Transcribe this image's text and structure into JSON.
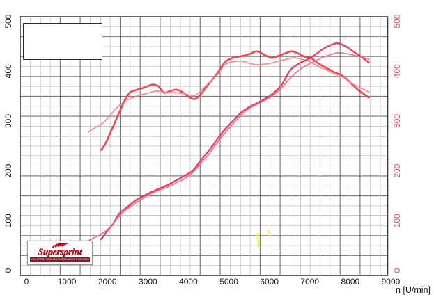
{
  "logo": {
    "brand": "Supersprint",
    "tagline": "HIGH PERFORMANCE EXHAUST SYSTEMS"
  },
  "axes": {
    "x_label": "n [U/min]",
    "x_ticks": [
      "0",
      "1000",
      "2000",
      "3000",
      "4000",
      "5000",
      "6000",
      "7000",
      "8000",
      "9000"
    ],
    "y_left_ticks": [
      "0",
      "100",
      "200",
      "300",
      "400",
      "500"
    ],
    "y_right_ticks": [
      "0",
      "100",
      "200",
      "300",
      "400",
      "500"
    ],
    "left_color": "#1c1c1c",
    "right_color": "#e4505e",
    "x_label_color": "#1c1c1c"
  },
  "grid_colors": {
    "minor": "#bcbcbc",
    "major": "#757575",
    "border": "#3a3a3a"
  },
  "chart_data": {
    "type": "line",
    "title": "",
    "xlabel": "n [U/min]",
    "ylabel": "",
    "xlim": [
      0,
      9000
    ],
    "ylim": [
      0,
      500
    ],
    "grid": "on",
    "legend": "none",
    "series": [
      {
        "name": "torque-curve-thick-red",
        "color": "#ee4150",
        "width": 2.7,
        "points": [
          [
            1850,
            242
          ],
          [
            1950,
            255
          ],
          [
            2050,
            272
          ],
          [
            2200,
            300
          ],
          [
            2350,
            328
          ],
          [
            2450,
            345
          ],
          [
            2550,
            357
          ],
          [
            2700,
            362
          ],
          [
            2900,
            367
          ],
          [
            3100,
            373
          ],
          [
            3250,
            370
          ],
          [
            3400,
            357
          ],
          [
            3550,
            360
          ],
          [
            3700,
            363
          ],
          [
            3850,
            358
          ],
          [
            4000,
            349
          ],
          [
            4150,
            344
          ],
          [
            4300,
            353
          ],
          [
            4450,
            369
          ],
          [
            4600,
            384
          ],
          [
            4750,
            400
          ],
          [
            4900,
            418
          ],
          [
            5100,
            427
          ],
          [
            5300,
            430
          ],
          [
            5500,
            434
          ],
          [
            5690,
            440
          ],
          [
            5850,
            434
          ],
          [
            6040,
            427
          ],
          [
            6200,
            430
          ],
          [
            6400,
            436
          ],
          [
            6550,
            440
          ],
          [
            6700,
            436
          ],
          [
            6900,
            428
          ],
          [
            7040,
            426
          ],
          [
            7200,
            416
          ],
          [
            7400,
            407
          ],
          [
            7600,
            398
          ],
          [
            7800,
            391
          ],
          [
            8000,
            377
          ],
          [
            8200,
            362
          ],
          [
            8460,
            347
          ]
        ]
      },
      {
        "name": "torque-curve-thin-salmon",
        "color": "#f4858b",
        "width": 1.7,
        "points": [
          [
            1530,
            278
          ],
          [
            1700,
            287
          ],
          [
            1850,
            293
          ],
          [
            2000,
            305
          ],
          [
            2150,
            319
          ],
          [
            2300,
            332
          ],
          [
            2450,
            341
          ],
          [
            2600,
            346
          ],
          [
            2800,
            352
          ],
          [
            3000,
            356
          ],
          [
            3200,
            360
          ],
          [
            3400,
            358
          ],
          [
            3600,
            357
          ],
          [
            3800,
            356
          ],
          [
            4000,
            353
          ],
          [
            4150,
            351
          ],
          [
            4300,
            360
          ],
          [
            4450,
            372
          ],
          [
            4600,
            384
          ],
          [
            4750,
            396
          ],
          [
            4900,
            413
          ],
          [
            5100,
            419
          ],
          [
            5340,
            420
          ],
          [
            5500,
            416
          ],
          [
            5690,
            413
          ],
          [
            5850,
            414
          ],
          [
            6040,
            416
          ],
          [
            6200,
            420
          ],
          [
            6430,
            424
          ],
          [
            6600,
            427
          ],
          [
            6800,
            424
          ],
          [
            7000,
            419
          ],
          [
            7200,
            410
          ],
          [
            7400,
            403
          ],
          [
            7600,
            395
          ],
          [
            7800,
            389
          ],
          [
            8000,
            377
          ],
          [
            8200,
            369
          ],
          [
            8460,
            358
          ]
        ]
      },
      {
        "name": "power-curve-thick-crimson",
        "color": "#e73a5e",
        "width": 2.5,
        "points": [
          [
            1850,
            63
          ],
          [
            2000,
            80
          ],
          [
            2150,
            95
          ],
          [
            2300,
            115
          ],
          [
            2500,
            128
          ],
          [
            2700,
            141
          ],
          [
            2900,
            150
          ],
          [
            3100,
            158
          ],
          [
            3300,
            165
          ],
          [
            3500,
            172
          ],
          [
            3700,
            181
          ],
          [
            3900,
            190
          ],
          [
            4100,
            200
          ],
          [
            4300,
            220
          ],
          [
            4500,
            240
          ],
          [
            4700,
            262
          ],
          [
            4900,
            283
          ],
          [
            5100,
            300
          ],
          [
            5300,
            317
          ],
          [
            5500,
            328
          ],
          [
            5700,
            336
          ],
          [
            5900,
            345
          ],
          [
            6100,
            356
          ],
          [
            6300,
            372
          ],
          [
            6500,
            400
          ],
          [
            6700,
            414
          ],
          [
            6900,
            422
          ],
          [
            7040,
            428
          ],
          [
            7300,
            443
          ],
          [
            7500,
            452
          ],
          [
            7700,
            456
          ],
          [
            7900,
            449
          ],
          [
            8100,
            438
          ],
          [
            8300,
            427
          ],
          [
            8460,
            417
          ]
        ]
      },
      {
        "name": "power-curve-thin-pink",
        "color": "#ee6d86",
        "width": 1.7,
        "points": [
          [
            1530,
            60
          ],
          [
            1700,
            67
          ],
          [
            1900,
            76
          ],
          [
            2100,
            90
          ],
          [
            2300,
            110
          ],
          [
            2500,
            124
          ],
          [
            2700,
            136
          ],
          [
            2900,
            146
          ],
          [
            3100,
            155
          ],
          [
            3300,
            162
          ],
          [
            3500,
            168
          ],
          [
            3700,
            176
          ],
          [
            3900,
            184
          ],
          [
            4100,
            196
          ],
          [
            4300,
            214
          ],
          [
            4500,
            233
          ],
          [
            4700,
            255
          ],
          [
            4900,
            276
          ],
          [
            5100,
            294
          ],
          [
            5300,
            312
          ],
          [
            5500,
            325
          ],
          [
            5700,
            334
          ],
          [
            5900,
            342
          ],
          [
            6100,
            352
          ],
          [
            6300,
            366
          ],
          [
            6500,
            385
          ],
          [
            6700,
            400
          ],
          [
            6900,
            411
          ],
          [
            7100,
            419
          ],
          [
            7300,
            427
          ],
          [
            7500,
            433
          ],
          [
            7700,
            437
          ],
          [
            7900,
            435
          ],
          [
            8100,
            432
          ],
          [
            8300,
            428
          ],
          [
            8460,
            424
          ]
        ]
      }
    ],
    "annotations": {
      "yellow_highlighter_marks": [
        {
          "rpm": 5745,
          "value_from": 47,
          "value_to": 73
        },
        {
          "rpm": 6010,
          "value_from": 71,
          "value_to": 81
        }
      ]
    }
  }
}
